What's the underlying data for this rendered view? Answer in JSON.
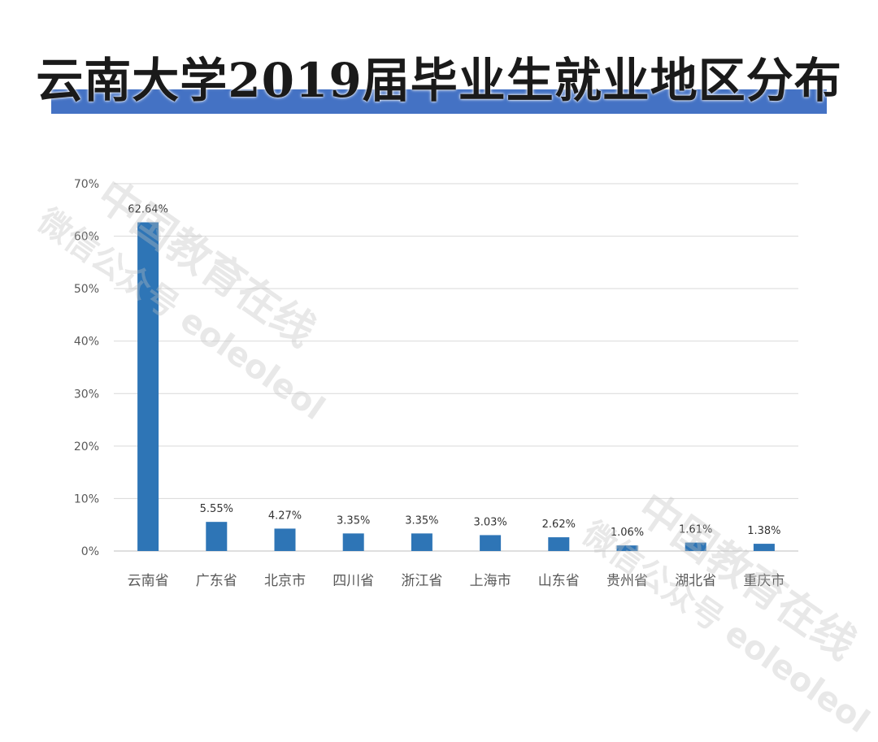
{
  "title": "云南大学2019届毕业生就业地区分布",
  "watermark": {
    "line1": "中国教育在线",
    "line2": "微信公众号 eoleoleol"
  },
  "colors": {
    "bar": "#2e75b6",
    "title_bar": "#4472c4",
    "grid": "#d9d9d9",
    "tick_text": "#595959"
  },
  "chart_data": {
    "type": "bar",
    "categories": [
      "云南省",
      "广东省",
      "北京市",
      "四川省",
      "浙江省",
      "上海市",
      "山东省",
      "贵州省",
      "湖北省",
      "重庆市"
    ],
    "values": [
      62.64,
      5.55,
      4.27,
      3.35,
      3.35,
      3.03,
      2.62,
      1.06,
      1.61,
      1.38
    ],
    "data_labels": [
      "62.64%",
      "5.55%",
      "4.27%",
      "3.35%",
      "3.35%",
      "3.03%",
      "2.62%",
      "1.06%",
      "1.61%",
      "1.38%"
    ],
    "y_ticks": [
      "0%",
      "10%",
      "20%",
      "30%",
      "40%",
      "50%",
      "60%",
      "70%"
    ],
    "ylim": [
      0,
      70
    ],
    "grid": true,
    "legend": "none",
    "title": "",
    "xlabel": "",
    "ylabel": ""
  }
}
